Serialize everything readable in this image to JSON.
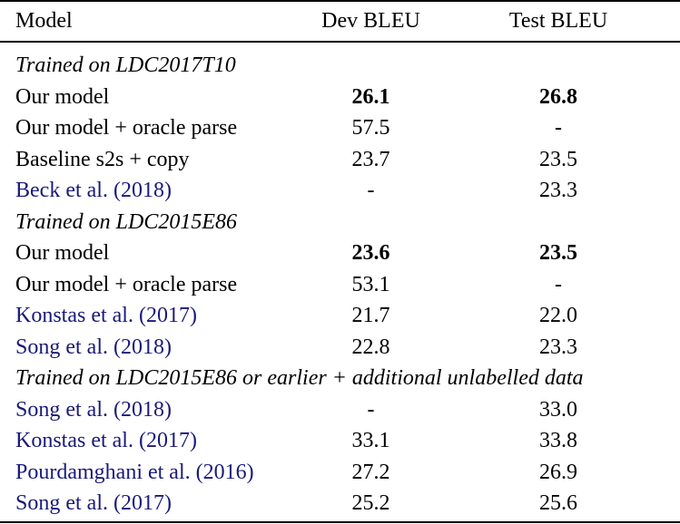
{
  "header": {
    "model": "Model",
    "dev": "Dev BLEU",
    "test": "Test BLEU"
  },
  "colors": {
    "citation": "#1a1a7a",
    "text": "#000000"
  },
  "sections": [
    {
      "title": "Trained on LDC2017T10",
      "rows": [
        {
          "model": "Our model",
          "dev": "26.1",
          "test": "26.8",
          "bold": true,
          "cite": false
        },
        {
          "model": "Our model + oracle parse",
          "dev": "57.5",
          "test": "-",
          "bold": false,
          "cite": false
        },
        {
          "model": "Baseline s2s + copy",
          "dev": "23.7",
          "test": "23.5",
          "bold": false,
          "cite": false
        },
        {
          "model": "Beck et al. (2018)",
          "dev": "-",
          "test": "23.3",
          "bold": false,
          "cite": true
        }
      ]
    },
    {
      "title": "Trained on LDC2015E86",
      "rows": [
        {
          "model": "Our model",
          "dev": "23.6",
          "test": "23.5",
          "bold": true,
          "cite": false
        },
        {
          "model": "Our model + oracle parse",
          "dev": "53.1",
          "test": "-",
          "bold": false,
          "cite": false
        },
        {
          "model": "Konstas et al. (2017)",
          "dev": "21.7",
          "test": "22.0",
          "bold": false,
          "cite": true
        },
        {
          "model": "Song et al. (2018)",
          "dev": "22.8",
          "test": "23.3",
          "bold": false,
          "cite": true
        }
      ]
    },
    {
      "title": "Trained on LDC2015E86 or earlier + additional unlabelled data",
      "rows": [
        {
          "model": "Song et al. (2018)",
          "dev": "-",
          "test": "33.0",
          "bold": false,
          "cite": true
        },
        {
          "model": "Konstas et al. (2017)",
          "dev": "33.1",
          "test": "33.8",
          "bold": false,
          "cite": true
        },
        {
          "model": "Pourdamghani et al. (2016)",
          "dev": "27.2",
          "test": "26.9",
          "bold": false,
          "cite": true
        },
        {
          "model": "Song et al. (2017)",
          "dev": "25.2",
          "test": "25.6",
          "bold": false,
          "cite": true
        }
      ]
    }
  ]
}
